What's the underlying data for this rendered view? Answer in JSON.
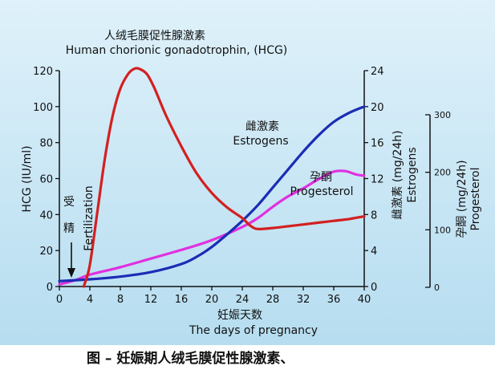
{
  "chart_data": {
    "type": "line",
    "title_cn": "人绒毛膜促性腺激素",
    "title_en": "Human chorionic gonadotrophin,  (HCG)",
    "xlabel_cn": "妊娠天数",
    "xlabel_en": "The days of pregnancy",
    "xlim": [
      0,
      40
    ],
    "x_ticks": [
      0,
      4,
      8,
      12,
      16,
      20,
      24,
      28,
      32,
      36,
      40
    ],
    "axes": {
      "hcg": {
        "label": "HCG (IU/ml)",
        "ylim": [
          0,
          120
        ],
        "ticks": [
          0,
          20,
          40,
          60,
          80,
          100,
          120
        ]
      },
      "estrogen": {
        "label_cn": "雌激素 (mg/24h)",
        "label_en": "Estrogens",
        "ylim": [
          0,
          24
        ],
        "ticks": [
          0,
          4,
          8,
          12,
          16,
          20,
          24
        ]
      },
      "progesterone": {
        "label_cn": "孕酮 (mg/24h)",
        "label_en": "Progesterol",
        "ylim": [
          0,
          300
        ],
        "ticks": [
          0,
          100,
          200,
          300
        ]
      }
    },
    "series": [
      {
        "name_cn": "人绒毛膜促性腺激素",
        "name_en": "HCG",
        "axis": "hcg",
        "color": "#d32020",
        "x": [
          3.2,
          4,
          5,
          6,
          7,
          8,
          9,
          9.8,
          10.5,
          11.5,
          12.5,
          14,
          16,
          18,
          20,
          22,
          24,
          25,
          26,
          28,
          30,
          32,
          34,
          36,
          38,
          40
        ],
        "y": [
          0,
          12,
          42,
          72,
          95,
          110,
          118,
          121,
          121,
          118,
          110,
          95,
          78,
          63,
          52,
          44,
          38,
          34,
          32,
          32.5,
          33.5,
          34.5,
          35.5,
          36.5,
          37.5,
          39
        ]
      },
      {
        "name_cn": "雌激素",
        "name_en": "Estrogens",
        "axis": "estrogen",
        "color": "#1a2db5",
        "x": [
          0,
          4,
          8,
          12,
          16,
          18,
          20,
          22,
          24,
          26,
          28,
          30,
          32,
          34,
          36,
          38,
          40
        ],
        "y": [
          0.6,
          0.8,
          1.1,
          1.6,
          2.5,
          3.3,
          4.4,
          5.8,
          7.3,
          9.0,
          11.0,
          13.0,
          15.0,
          16.8,
          18.3,
          19.3,
          20
        ]
      },
      {
        "name_cn": "孕酮",
        "name_en": "Progesterone",
        "axis": "progesterone",
        "color": "#e030e0",
        "x": [
          0,
          2,
          4,
          8,
          12,
          16,
          20,
          24,
          26,
          28,
          30,
          32,
          34,
          36,
          37.5,
          39,
          40
        ],
        "y": [
          5,
          12,
          22,
          35,
          50,
          65,
          82,
          105,
          120,
          140,
          158,
          172,
          188,
          201,
          202,
          196,
          194
        ]
      }
    ],
    "annotations": {
      "fert_cn_1": "受",
      "fert_cn_2": "精",
      "fert_en": "Fertilization",
      "estrogen_cn": "雌激素",
      "estrogen_en": "Estrogens",
      "prog_cn": "孕酮",
      "prog_en": "Progesterol"
    },
    "caption": "图  –  妊娠期人绒毛膜促性腺激素、",
    "colors": {
      "background_top": "#dff1fa",
      "background_bottom": "#b6ddf0"
    }
  }
}
